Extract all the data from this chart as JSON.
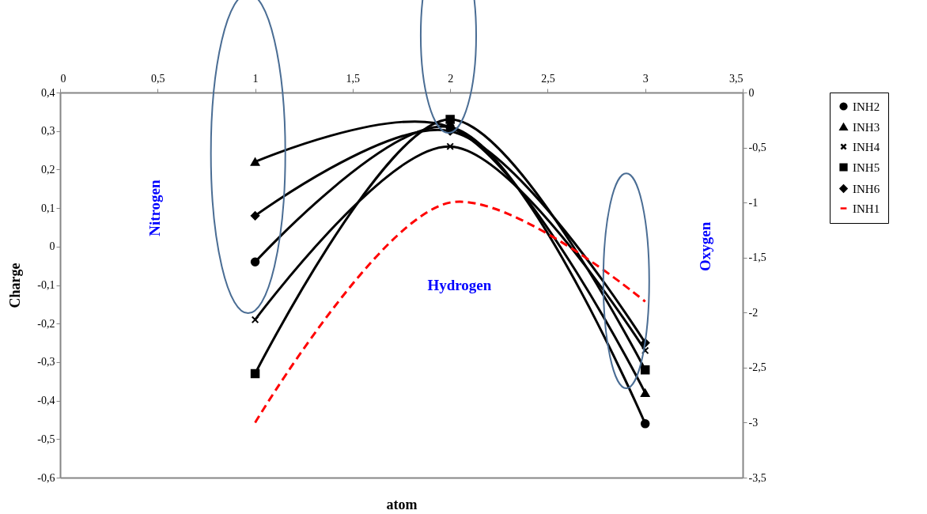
{
  "chart_data": {
    "type": "line",
    "xlabel": "atom",
    "ylabel": "Charge",
    "x": [
      1,
      2,
      3
    ],
    "xlim": [
      0,
      3.5
    ],
    "xticks": [
      0,
      {
        "value": 0.5,
        "label": "0,5"
      },
      1,
      {
        "value": 1.5,
        "label": "1,5"
      },
      2,
      {
        "value": 2.5,
        "label": "2,5"
      },
      3,
      {
        "value": 3.5,
        "label": "3,5"
      }
    ],
    "ylim": [
      -0.6,
      0.4
    ],
    "yticks": [
      {
        "value": 0.4,
        "label": "0,4"
      },
      {
        "value": 0.3,
        "label": "0,3"
      },
      {
        "value": 0.2,
        "label": "0,2"
      },
      {
        "value": 0.1,
        "label": "0,1"
      },
      0,
      {
        "value": -0.1,
        "label": "-0,1"
      },
      {
        "value": -0.2,
        "label": "-0,2"
      },
      {
        "value": -0.3,
        "label": "-0,3"
      },
      {
        "value": -0.4,
        "label": "-0,4"
      },
      {
        "value": -0.5,
        "label": "-0,5"
      },
      {
        "value": -0.6,
        "label": "-0,6"
      }
    ],
    "y2lim": [
      -3.5,
      0
    ],
    "y2ticks": [
      0,
      {
        "value": -0.5,
        "label": "-0,5"
      },
      -1,
      {
        "value": -1.5,
        "label": "-1,5"
      },
      -2,
      {
        "value": -2.5,
        "label": "-2,5"
      },
      -3,
      {
        "value": -3.5,
        "label": "-3,5"
      }
    ],
    "series": [
      {
        "name": "INH2",
        "color": "#000000",
        "marker": "circle",
        "line_style": "solid",
        "values": [
          -0.04,
          0.31,
          -0.46
        ]
      },
      {
        "name": "INH3",
        "color": "#000000",
        "marker": "triangle",
        "line_style": "solid",
        "values": [
          0.22,
          0.31,
          -0.38
        ]
      },
      {
        "name": "INH4",
        "color": "#000000",
        "marker": "cross",
        "line_style": "solid",
        "values": [
          -0.19,
          0.26,
          -0.27
        ]
      },
      {
        "name": "INH5",
        "color": "#000000",
        "marker": "square",
        "line_style": "solid",
        "values": [
          -0.33,
          0.33,
          -0.32
        ]
      },
      {
        "name": "INH6",
        "color": "#000000",
        "marker": "diamond",
        "line_style": "solid",
        "values": [
          0.08,
          0.3,
          -0.25
        ]
      },
      {
        "name": "INH1",
        "color": "#ff0000",
        "marker": "none",
        "line_style": "dashed",
        "axis": "y2",
        "values": [
          -3.0,
          -1.0,
          -1.9
        ]
      }
    ],
    "annotations": [
      "Nitrogen",
      "Hydrogen",
      "Oxygen"
    ],
    "legend": "right",
    "grid": false
  }
}
